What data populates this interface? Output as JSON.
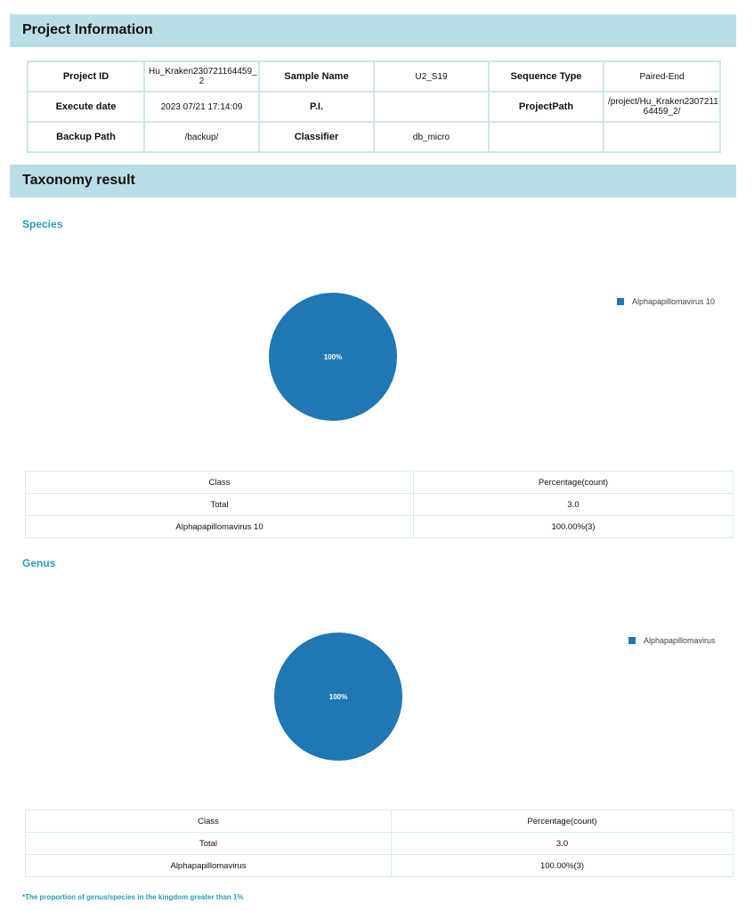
{
  "project": {
    "title": "Project Information",
    "rows": [
      [
        "Project ID",
        "Hu_Kraken230721164459_ 2",
        "Sample Name",
        "U2_S19",
        "Sequence Type",
        "Paired-End"
      ],
      [
        "Execute date",
        "2023 07/21 17:14:09",
        "P.I.",
        "",
        "ProjectPath",
        "/project/Hu_Kraken2307211 64459_2/"
      ],
      [
        "Backup Path",
        "/backup/",
        "Classifier",
        "db_micro",
        "",
        ""
      ]
    ]
  },
  "taxonomy": {
    "title": "Taxonomy result",
    "species": {
      "label": "Species",
      "legend": "Alphapapillomavirus 10",
      "color": "#1f77b4",
      "pie_label": "100%",
      "headers": [
        "Class",
        "Percentage(count)"
      ],
      "rows": [
        [
          "Total",
          "3.0"
        ],
        [
          "Alphapapillomavirus 10",
          "100.00%(3)"
        ]
      ]
    },
    "genus": {
      "label": "Genus",
      "legend": "Alphapapillomavirus",
      "color": "#1f77b4",
      "pie_label": "100%",
      "headers": [
        "Class",
        "Percentage(count)"
      ],
      "rows": [
        [
          "Total",
          "3.0"
        ],
        [
          "Alphapapillomavirus",
          "100.00%(3)"
        ]
      ]
    },
    "footnote": "*The proportion of genus/species in the kingdom greater than 1%"
  },
  "chart_data": [
    {
      "type": "pie",
      "title": "Species",
      "categories": [
        "Alphapapillomavirus 10"
      ],
      "values": [
        100
      ],
      "legend": "top-right"
    },
    {
      "type": "pie",
      "title": "Genus",
      "categories": [
        "Alphapapillomavirus"
      ],
      "values": [
        100
      ],
      "legend": "top-right"
    }
  ]
}
